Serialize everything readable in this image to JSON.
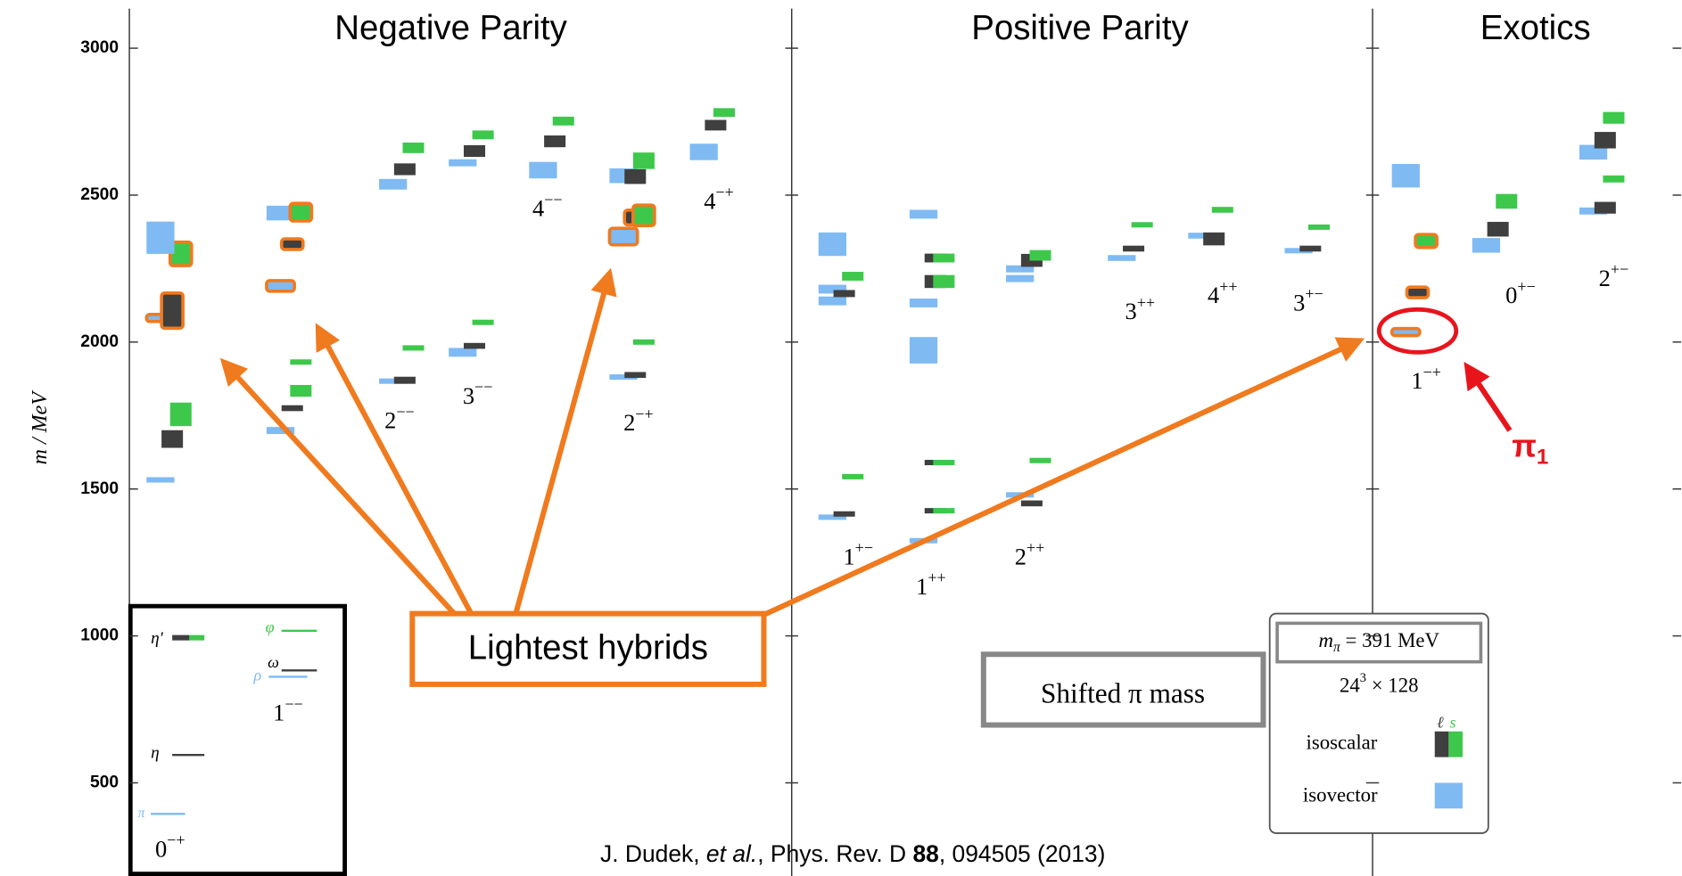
{
  "chart_data": {
    "type": "spectrum",
    "ylabel": "m / MeV",
    "ylim": [
      183,
      3164
    ],
    "yticks": [
      500,
      1000,
      1500,
      2000,
      2500,
      3000
    ],
    "colors": {
      "isovector": "#7fbaf3",
      "ℓ": "#3f3f3f",
      "s": "#3dc84c"
    },
    "hybrid_color": "#f07a1e",
    "sections": [
      {
        "title": "Negative Parity"
      },
      {
        "title": "Positive Parity"
      },
      {
        "title": "Exotics"
      }
    ],
    "columns": [
      {
        "J": "0",
        "PC": "−+",
        "levels": [
          {
            "m": 1531,
            "e": 8,
            "k": "isovector"
          },
          {
            "m": 1670,
            "e": 30,
            "k": "ℓ"
          },
          {
            "m": 1754,
            "e": 40,
            "k": "s"
          },
          {
            "m": 2082,
            "e": 12,
            "k": "isovector",
            "h": true
          },
          {
            "m": 2107,
            "e": 60,
            "k": "ℓ",
            "h": true
          },
          {
            "m": 2300,
            "e": 40,
            "k": "s",
            "h": true
          },
          {
            "m": 2355,
            "e": 55,
            "k": "isovector"
          }
        ]
      },
      {
        "J": "1",
        "PC": "−−",
        "levels": [
          {
            "m": 1699,
            "e": 12,
            "k": "isovector"
          },
          {
            "m": 1775,
            "e": 10,
            "k": "ℓ"
          },
          {
            "m": 1834,
            "e": 20,
            "k": "s"
          },
          {
            "m": 1932,
            "e": 8,
            "k": "s"
          },
          {
            "m": 2191,
            "e": 18,
            "k": "isovector",
            "h": true
          },
          {
            "m": 2333,
            "e": 18,
            "k": "ℓ",
            "h": true
          },
          {
            "m": 2439,
            "e": 25,
            "k": "isovector"
          },
          {
            "m": 2442,
            "e": 30,
            "k": "s",
            "h": true
          }
        ]
      },
      {
        "J": "2",
        "PC": "−−",
        "levels": [
          {
            "m": 1867,
            "e": 8,
            "k": "isovector"
          },
          {
            "m": 1870,
            "e": 12,
            "k": "ℓ"
          },
          {
            "m": 1980,
            "e": 6,
            "k": "s"
          },
          {
            "m": 2537,
            "e": 18,
            "k": "isovector"
          },
          {
            "m": 2588,
            "e": 20,
            "k": "ℓ"
          },
          {
            "m": 2661,
            "e": 18,
            "k": "s"
          }
        ]
      },
      {
        "J": "3",
        "PC": "−−",
        "levels": [
          {
            "m": 1965,
            "e": 15,
            "k": "isovector"
          },
          {
            "m": 1987,
            "e": 10,
            "k": "ℓ"
          },
          {
            "m": 2067,
            "e": 6,
            "k": "s"
          },
          {
            "m": 2610,
            "e": 12,
            "k": "isovector"
          },
          {
            "m": 2650,
            "e": 20,
            "k": "ℓ"
          },
          {
            "m": 2705,
            "e": 15,
            "k": "s"
          }
        ]
      },
      {
        "J": "4",
        "PC": "−−",
        "levels": [
          {
            "m": 2585,
            "e": 28,
            "k": "isovector"
          },
          {
            "m": 2683,
            "e": 20,
            "k": "ℓ"
          },
          {
            "m": 2752,
            "e": 15,
            "k": "s"
          }
        ]
      },
      {
        "J": "2",
        "PC": "−+",
        "levels": [
          {
            "m": 1881,
            "e": 6,
            "k": "isovector"
          },
          {
            "m": 1888,
            "e": 10,
            "k": "ℓ"
          },
          {
            "m": 2000,
            "e": 6,
            "k": "s"
          },
          {
            "m": 2359,
            "e": 28,
            "k": "isovector",
            "h": true
          },
          {
            "m": 2424,
            "e": 25,
            "k": "ℓ",
            "h": true
          },
          {
            "m": 2431,
            "e": 35,
            "k": "s",
            "h": true
          },
          {
            "m": 2566,
            "e": 25,
            "k": "isovector"
          },
          {
            "m": 2563,
            "e": 25,
            "k": "ℓ"
          },
          {
            "m": 2617,
            "e": 28,
            "k": "s"
          }
        ]
      },
      {
        "J": "4",
        "PC": "−+",
        "levels": [
          {
            "m": 2647,
            "e": 28,
            "k": "isovector"
          },
          {
            "m": 2738,
            "e": 18,
            "k": "ℓ"
          },
          {
            "m": 2781,
            "e": 15,
            "k": "s"
          }
        ]
      },
      {
        "J": "1",
        "PC": "+−",
        "levels": [
          {
            "m": 1404,
            "e": 6,
            "k": "isovector"
          },
          {
            "m": 1415,
            "e": 8,
            "k": "ℓ"
          },
          {
            "m": 1542,
            "e": 5,
            "k": "s"
          },
          {
            "m": 2140,
            "e": 15,
            "k": "isovector"
          },
          {
            "m": 2180,
            "e": 15,
            "k": "isovector"
          },
          {
            "m": 2165,
            "e": 12,
            "k": "ℓ"
          },
          {
            "m": 2224,
            "e": 15,
            "k": "s"
          },
          {
            "m": 2333,
            "e": 40,
            "k": "isovector"
          }
        ]
      },
      {
        "J": "1",
        "PC": "++",
        "levels": [
          {
            "m": 1324,
            "e": 5,
            "k": "isovector"
          },
          {
            "m": 1426,
            "e": 8,
            "k": "ℓ"
          },
          {
            "m": 1426,
            "e": 8,
            "k": "s"
          },
          {
            "m": 1590,
            "e": 8,
            "k": "ℓ"
          },
          {
            "m": 1590,
            "e": 8,
            "k": "s"
          },
          {
            "m": 1972,
            "e": 45,
            "k": "isovector"
          },
          {
            "m": 2133,
            "e": 15,
            "k": "isovector"
          },
          {
            "m": 2206,
            "e": 22,
            "k": "ℓ"
          },
          {
            "m": 2206,
            "e": 22,
            "k": "s"
          },
          {
            "m": 2286,
            "e": 15,
            "k": "ℓ"
          },
          {
            "m": 2286,
            "e": 15,
            "k": "s"
          },
          {
            "m": 2435,
            "e": 15,
            "k": "isovector"
          }
        ]
      },
      {
        "J": "2",
        "PC": "++",
        "levels": [
          {
            "m": 1480,
            "e": 6,
            "k": "isovector"
          },
          {
            "m": 1451,
            "e": 10,
            "k": "ℓ"
          },
          {
            "m": 1597,
            "e": 5,
            "k": "s"
          },
          {
            "m": 2216,
            "e": 12,
            "k": "isovector"
          },
          {
            "m": 2249,
            "e": 12,
            "k": "isovector"
          },
          {
            "m": 2278,
            "e": 22,
            "k": "ℓ"
          },
          {
            "m": 2295,
            "e": 18,
            "k": "s"
          }
        ]
      },
      {
        "J": "3",
        "PC": "++",
        "levels": [
          {
            "m": 2286,
            "e": 10,
            "k": "isovector"
          },
          {
            "m": 2318,
            "e": 10,
            "k": "ℓ"
          },
          {
            "m": 2399,
            "e": 8,
            "k": "s"
          }
        ]
      },
      {
        "J": "4",
        "PC": "++",
        "levels": [
          {
            "m": 2362,
            "e": 10,
            "k": "isovector"
          },
          {
            "m": 2351,
            "e": 22,
            "k": "ℓ"
          },
          {
            "m": 2450,
            "e": 10,
            "k": "s"
          }
        ]
      },
      {
        "J": "3",
        "PC": "+−",
        "levels": [
          {
            "m": 2311,
            "e": 8,
            "k": "isovector"
          },
          {
            "m": 2318,
            "e": 10,
            "k": "ℓ"
          },
          {
            "m": 2391,
            "e": 8,
            "k": "s"
          }
        ]
      },
      {
        "J": "1",
        "PC": "−+",
        "levels": [
          {
            "m": 2034,
            "e": 12,
            "k": "isovector",
            "h": true
          },
          {
            "m": 2169,
            "e": 18,
            "k": "ℓ",
            "h": true
          },
          {
            "m": 2344,
            "e": 22,
            "k": "s",
            "h": true
          },
          {
            "m": 2566,
            "e": 40,
            "k": "isovector"
          }
        ]
      },
      {
        "J": "0",
        "PC": "+−",
        "levels": [
          {
            "m": 2329,
            "e": 25,
            "k": "isovector"
          },
          {
            "m": 2384,
            "e": 25,
            "k": "ℓ"
          },
          {
            "m": 2479,
            "e": 25,
            "k": "s"
          }
        ]
      },
      {
        "J": "2",
        "PC": "+−",
        "levels": [
          {
            "m": 2446,
            "e": 12,
            "k": "isovector"
          },
          {
            "m": 2457,
            "e": 20,
            "k": "ℓ"
          },
          {
            "m": 2555,
            "e": 12,
            "k": "s"
          },
          {
            "m": 2646,
            "e": 25,
            "k": "isovector"
          },
          {
            "m": 2687,
            "e": 28,
            "k": "ℓ"
          },
          {
            "m": 2763,
            "e": 20,
            "k": "s"
          }
        ]
      }
    ],
    "key": {
      "eta_prime": "η′",
      "phi": "φ",
      "omega": "ω",
      "rho": "ρ",
      "eta": "η",
      "pi": "π"
    },
    "info": {
      "m": "m",
      "pi": "π",
      "mass": " = 391 MeV",
      "L": "24",
      "L_exp": "3",
      "T": " × 128",
      "isoscalar": "isoscalar",
      "isovector": "isovector",
      "light": "ℓ",
      "strange": "s"
    },
    "annotations": {
      "hybrids": "Lightest hybrids",
      "shifted": "Shifted π mass",
      "pi1": "π",
      "pi1_sub": "1",
      "citation": [
        "J. Dudek, ",
        "et al.",
        ", Phys. Rev. D ",
        "88",
        ", 094505 (2013)"
      ]
    }
  }
}
